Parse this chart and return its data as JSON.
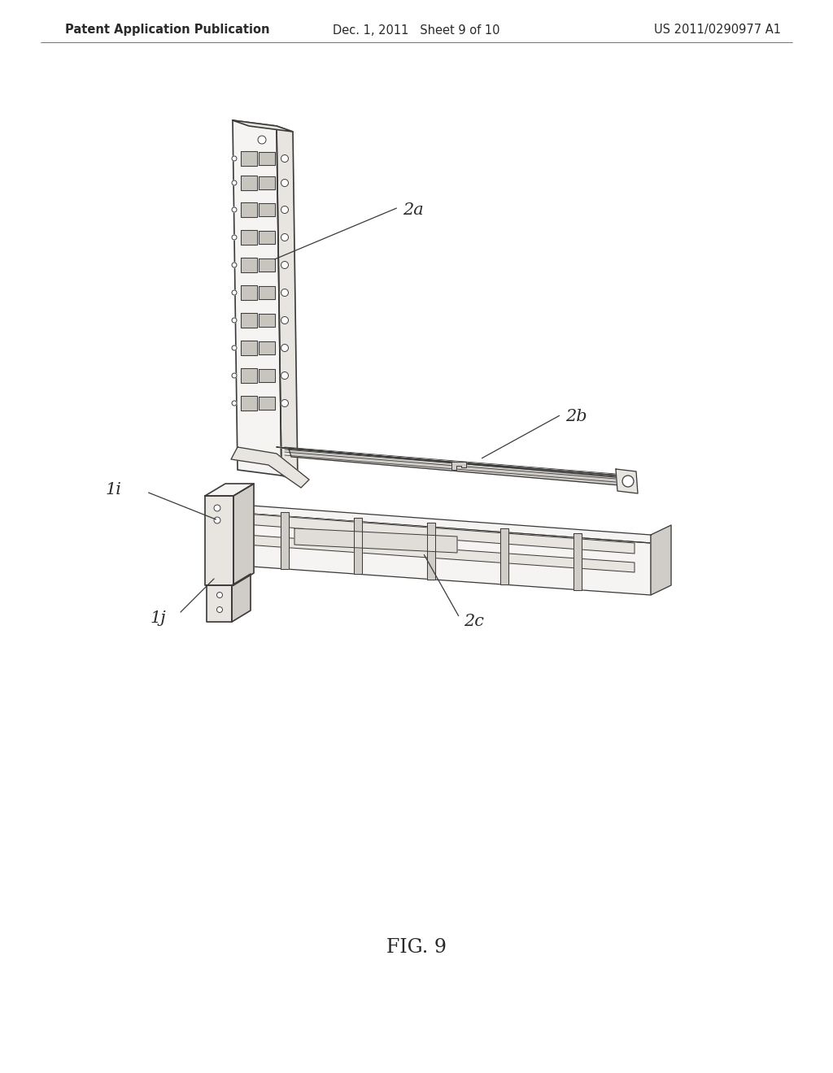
{
  "background_color": "#ffffff",
  "header_left": "Patent Application Publication",
  "header_center": "Dec. 1, 2011   Sheet 9 of 10",
  "header_right": "US 2011/0290977 A1",
  "figure_label": "FIG. 9",
  "text_color": "#2a2a2a",
  "line_color": "#3a3a3a",
  "fill_light": "#f5f4f2",
  "fill_mid": "#e8e5e0",
  "fill_dark": "#d0cdc8",
  "fill_darker": "#b8b5b0",
  "header_fontsize": 10.5,
  "label_fontsize": 15,
  "fig_label_fontsize": 17
}
